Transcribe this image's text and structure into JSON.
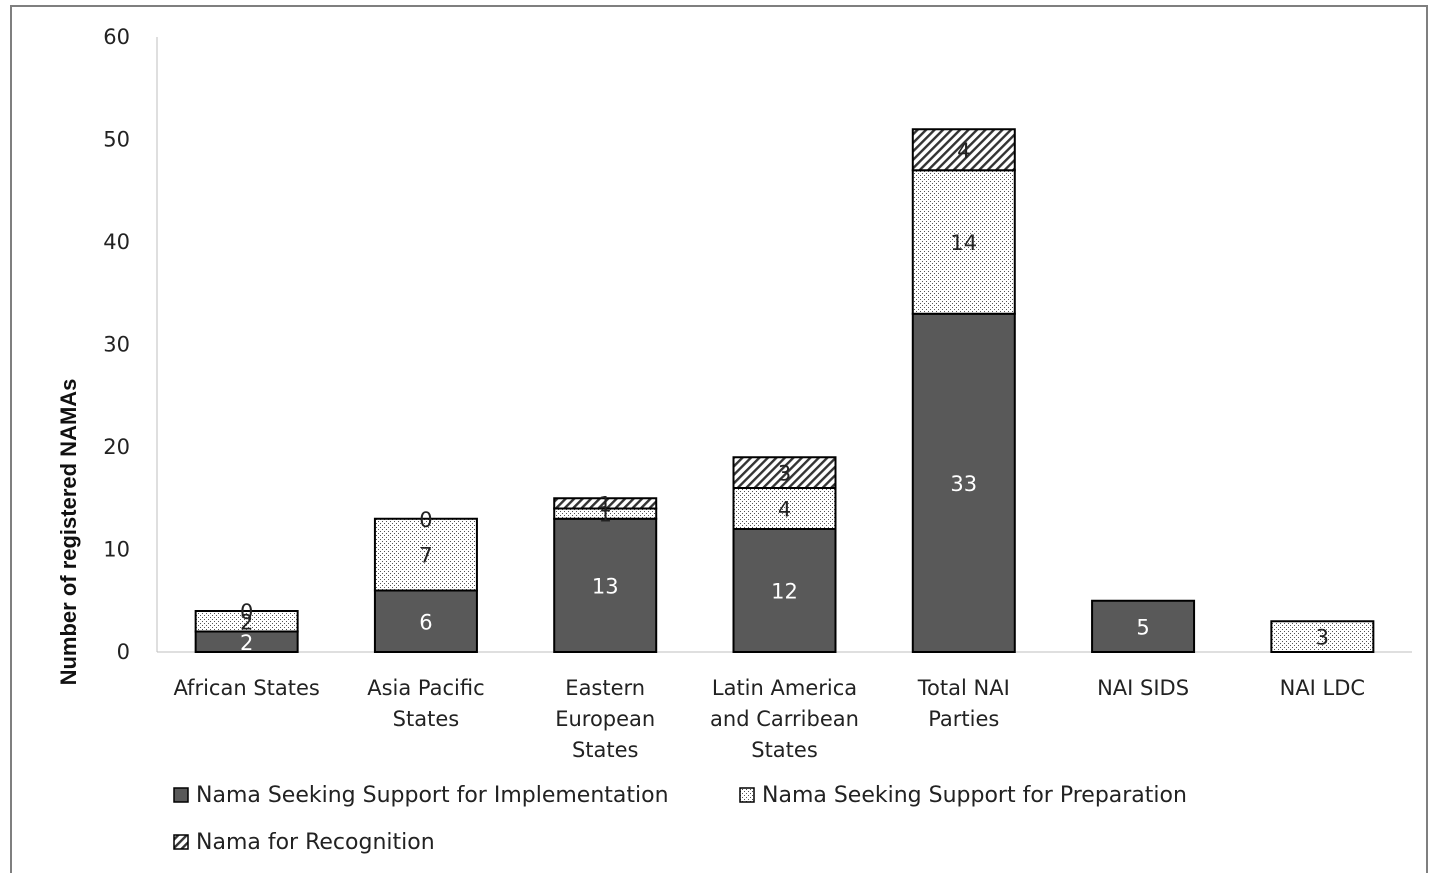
{
  "chart_data": {
    "type": "bar",
    "stacked": true,
    "title": "",
    "xlabel": "",
    "ylabel": "Number of registered NAMAs",
    "ylim": [
      0,
      60
    ],
    "yticks": [
      0,
      10,
      20,
      30,
      40,
      50,
      60
    ],
    "grid": false,
    "legend_position": "bottom",
    "categories": [
      [
        "African States"
      ],
      [
        "Asia Pacific",
        "States"
      ],
      [
        "Eastern",
        "European",
        "States"
      ],
      [
        "Latin America",
        "and Carribean",
        "States"
      ],
      [
        "Total NAI",
        "Parties"
      ],
      [
        "NAI SIDS"
      ],
      [
        "NAI LDC"
      ]
    ],
    "series": [
      {
        "name": "Nama Seeking Support for Implementation",
        "values": [
          2,
          6,
          13,
          12,
          33,
          5,
          0
        ],
        "labels": [
          "2",
          "6",
          "13",
          "12",
          "33",
          "5",
          ""
        ],
        "color": "#595959",
        "pattern": "solid",
        "label_color": "#ffffff"
      },
      {
        "name": "Nama Seeking Support for Preparation",
        "values": [
          2,
          7,
          1,
          4,
          14,
          0,
          3
        ],
        "labels": [
          "2",
          "7",
          "1",
          "4",
          "14",
          "",
          "3"
        ],
        "color": "#ffffff",
        "pattern": "dots",
        "label_color": "#222222"
      },
      {
        "name": "Nama for Recognition",
        "values": [
          0,
          0,
          1,
          3,
          4,
          0,
          0
        ],
        "labels": [
          "0",
          "0",
          "1",
          "3",
          "4",
          "",
          ""
        ],
        "color": "#ffffff",
        "pattern": "hatch",
        "label_color": "#222222"
      }
    ]
  }
}
